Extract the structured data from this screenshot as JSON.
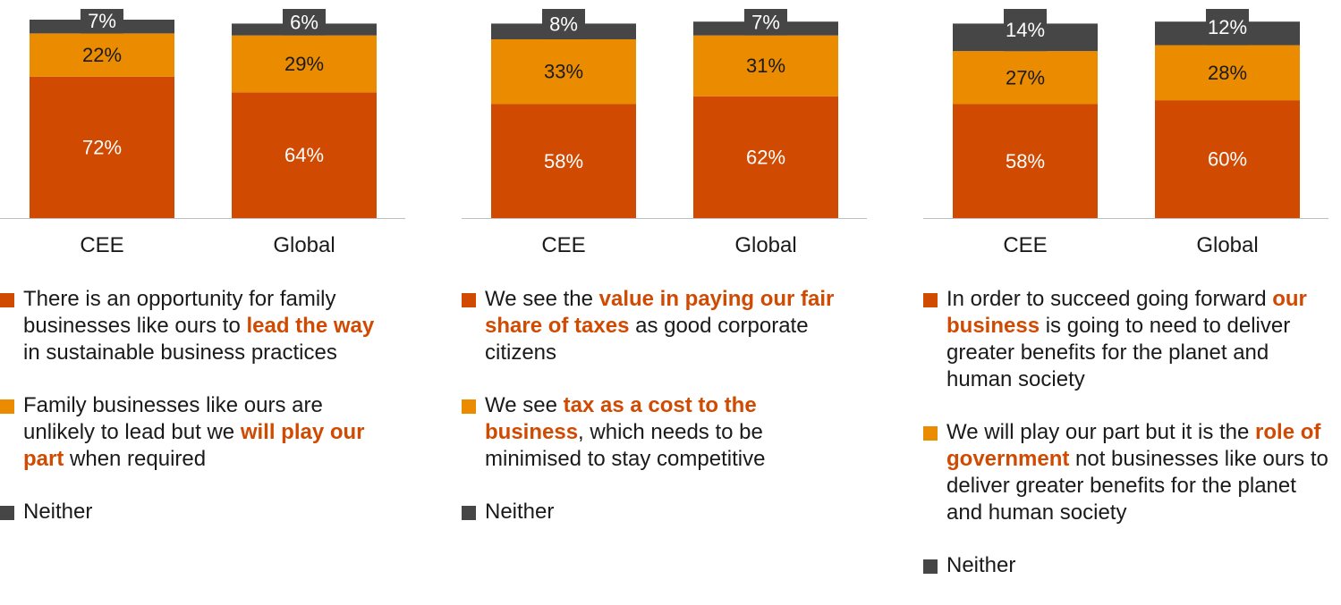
{
  "colors": {
    "dark_orange": "#d04a02",
    "light_orange": "#eb8c00",
    "neither": "#464646",
    "axis": "#bfbfbf"
  },
  "chart_data": [
    {
      "type": "bar",
      "stacked": true,
      "categories": [
        "CEE",
        "Global"
      ],
      "series": [
        {
          "key": "opportunity",
          "values": [
            72,
            64
          ]
        },
        {
          "key": "play_part",
          "values": [
            22,
            29
          ]
        },
        {
          "key": "neither",
          "values": [
            7,
            6
          ]
        }
      ],
      "ylim": [
        0,
        101
      ],
      "legend": {
        "placement": "bottom",
        "items": [
          {
            "key": "opportunity",
            "parts": [
              {
                "t": "There is an opportunity for family businesses like ours to "
              },
              {
                "t": "lead the way",
                "hl": true
              },
              {
                "t": " in sustainable business practices"
              }
            ]
          },
          {
            "key": "play_part",
            "parts": [
              {
                "t": "Family businesses like ours are unlikely to lead but we "
              },
              {
                "t": "will play our part",
                "hl": true
              },
              {
                "t": " when required"
              }
            ]
          },
          {
            "key": "neither",
            "parts": [
              {
                "t": "Neither"
              }
            ]
          }
        ]
      }
    },
    {
      "type": "bar",
      "stacked": true,
      "categories": [
        "CEE",
        "Global"
      ],
      "series": [
        {
          "key": "value_taxes",
          "values": [
            58,
            62
          ]
        },
        {
          "key": "tax_cost",
          "values": [
            33,
            31
          ]
        },
        {
          "key": "neither",
          "values": [
            8,
            7
          ]
        }
      ],
      "ylim": [
        0,
        101
      ],
      "legend": {
        "placement": "bottom",
        "items": [
          {
            "key": "value_taxes",
            "parts": [
              {
                "t": "We see the "
              },
              {
                "t": "value in paying our fair share of taxes",
                "hl": true
              },
              {
                "t": " as good corporate citizens"
              }
            ]
          },
          {
            "key": "tax_cost",
            "parts": [
              {
                "t": "We see "
              },
              {
                "t": "tax as a cost to the business",
                "hl": true
              },
              {
                "t": ", which needs to be minimised to stay competitive"
              }
            ]
          },
          {
            "key": "neither",
            "parts": [
              {
                "t": "Neither"
              }
            ]
          }
        ]
      }
    },
    {
      "type": "bar",
      "stacked": true,
      "categories": [
        "CEE",
        "Global"
      ],
      "series": [
        {
          "key": "our_business",
          "values": [
            58,
            60
          ]
        },
        {
          "key": "role_government",
          "values": [
            27,
            28
          ]
        },
        {
          "key": "neither",
          "values": [
            14,
            12
          ]
        }
      ],
      "ylim": [
        0,
        101
      ],
      "legend": {
        "placement": "bottom",
        "items": [
          {
            "key": "our_business",
            "parts": [
              {
                "t": "In order to succeed going forward "
              },
              {
                "t": "our business",
                "hl": true
              },
              {
                "t": " is going to need to deliver greater benefits for the planet and human society"
              }
            ]
          },
          {
            "key": "role_government",
            "parts": [
              {
                "t": "We will play our part but it is the "
              },
              {
                "t": "role of government",
                "hl": true
              },
              {
                "t": " not businesses like ours to deliver greater benefits for the planet and human society"
              }
            ]
          },
          {
            "key": "neither",
            "parts": [
              {
                "t": "Neither"
              }
            ]
          }
        ]
      }
    }
  ]
}
